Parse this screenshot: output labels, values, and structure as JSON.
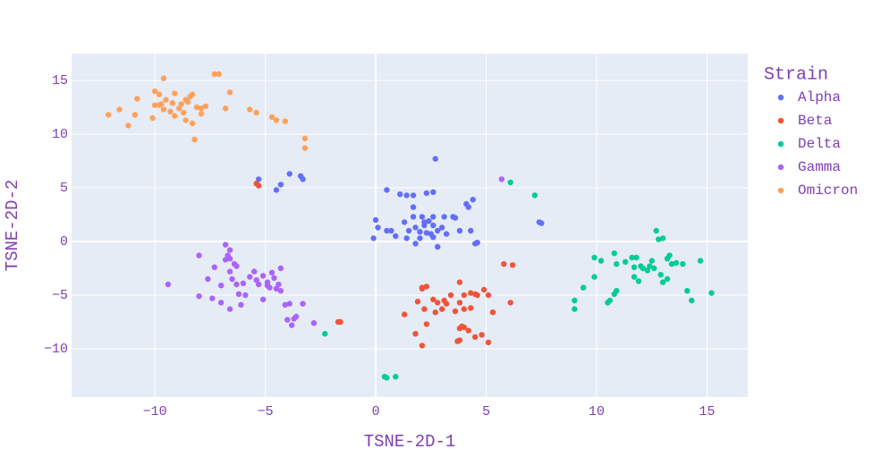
{
  "chart_data": {
    "type": "scatter",
    "xlabel": "TSNE-2D-1",
    "ylabel": "TSNE-2D-2",
    "legend_title": "Strain",
    "xlim": [
      -13.77,
      16.84
    ],
    "ylim": [
      -14.5,
      17.5
    ],
    "xticks": [
      {
        "value": -10,
        "label": "−10"
      },
      {
        "value": -5,
        "label": "−5"
      },
      0,
      5,
      10,
      15
    ],
    "yticks": [
      {
        "value": -10,
        "label": "−10"
      },
      {
        "value": -5,
        "label": "−5"
      },
      0,
      5,
      10,
      15
    ],
    "grid": true,
    "legend": "right",
    "series": [
      {
        "name": "Alpha",
        "color": "#636efa",
        "x": [
          0.5,
          1.1,
          1.4,
          1.7,
          2.3,
          2.6,
          2.7,
          1.7,
          2.1,
          2.6,
          3.1,
          3.5,
          0,
          0.1,
          0.5,
          0.7,
          1.3,
          1.5,
          1.8,
          2.0,
          2.2,
          2.4,
          2.6,
          2.8,
          3.0,
          3.2,
          2.3,
          2.5,
          1.8,
          2.8,
          -0.1,
          0.9,
          1.4,
          2.0,
          2.6,
          3.8,
          4.3,
          4.5,
          4.6,
          4.1,
          4.2,
          4.4,
          1.7,
          -5.3,
          -4.5,
          -4.3,
          -3.9,
          -3.4,
          -3.3,
          7.4,
          7.5,
          3.6,
          2.2
        ],
        "y": [
          4.8,
          4.4,
          4.3,
          3.2,
          4.5,
          4.6,
          7.7,
          2.3,
          2.3,
          2.3,
          2.3,
          2.3,
          2.0,
          1.3,
          1.0,
          1.0,
          1.8,
          1.0,
          1.3,
          0.9,
          1.5,
          1.9,
          1.5,
          1.0,
          1.3,
          0.7,
          0.8,
          0.7,
          -0.2,
          -0.5,
          0.3,
          0.5,
          0.3,
          0.3,
          0.4,
          1.0,
          1.0,
          -0.2,
          -0.1,
          3.5,
          3.2,
          3.9,
          4.3,
          5.8,
          4.8,
          5.3,
          6.3,
          6.1,
          5.8,
          1.8,
          1.7,
          2.2,
          1.8
        ]
      },
      {
        "name": "Beta",
        "color": "#ef553b",
        "x": [
          -5.4,
          -5.3,
          2.1,
          2.3,
          2.1,
          2.6,
          2.8,
          3.1,
          3.4,
          3.8,
          4.0,
          4.3,
          4.5,
          4.6,
          4.9,
          5.1,
          5.3,
          6.1,
          5.8,
          6.2,
          3.8,
          4.0,
          4.3,
          1.9,
          1.3,
          2.2,
          2.7,
          3.0,
          3.6,
          3.9,
          3.8,
          4.0,
          3.8,
          3.7,
          4.2,
          4.5,
          4.8,
          5.1,
          2.3,
          1.8,
          2.1,
          -1.7,
          -1.6,
          3.2
        ],
        "y": [
          5.4,
          5.2,
          -4.3,
          -4.2,
          -4.4,
          -5.4,
          -5.7,
          -5.5,
          -5.0,
          -3.8,
          -5.0,
          -4.8,
          -4.9,
          -5.0,
          -4.5,
          -5.0,
          -6.6,
          -5.7,
          -2.1,
          -2.2,
          -5.7,
          -6.3,
          -6.2,
          -5.6,
          -6.8,
          -6.3,
          -6.6,
          -6.3,
          -6.5,
          -7.9,
          -8.1,
          -8.0,
          -9.2,
          -9.3,
          -8.3,
          -8.9,
          -8.7,
          -9.4,
          -7.7,
          -8.6,
          -9.7,
          -7.5,
          -7.5,
          -5.8
        ]
      },
      {
        "name": "Delta",
        "color": "#00cc96",
        "x": [
          6.1,
          7.2,
          9.0,
          9.0,
          9.4,
          9.9,
          9.9,
          10.2,
          10.5,
          10.6,
          10.8,
          10.9,
          10.8,
          10.9,
          11.3,
          11.6,
          11.7,
          11.8,
          12.0,
          12.1,
          12.3,
          12.4,
          12.6,
          12.7,
          12.8,
          13.0,
          13.2,
          13.3,
          13.4,
          13.6,
          13.9,
          12.9,
          13.0,
          13.2,
          14.1,
          14.3,
          14.7,
          15.2,
          11.9,
          11.7,
          -2.3,
          0.4,
          0.5,
          0.9,
          12.5
        ],
        "y": [
          5.5,
          4.3,
          -5.5,
          -6.3,
          -4.3,
          -1.5,
          -3.3,
          -1.8,
          -5.7,
          -5.5,
          -4.9,
          -4.6,
          -1.1,
          -2.1,
          -1.9,
          -1.5,
          -2.4,
          -1.5,
          -2.3,
          -2.5,
          -2.7,
          -2.3,
          -2.5,
          1.0,
          0.2,
          0.3,
          -1.6,
          -1.3,
          -2.1,
          -2.0,
          -2.1,
          -3.1,
          -3.8,
          -3.5,
          -4.6,
          -5.5,
          -1.8,
          -4.8,
          -3.7,
          -3.3,
          -8.6,
          -12.6,
          -12.7,
          -12.6,
          -1.8
        ]
      },
      {
        "name": "Gamma",
        "color": "#ab63fa",
        "x": [
          5.7,
          -9.4,
          -8.0,
          -8.0,
          -7.4,
          -7.3,
          -7.0,
          -6.8,
          -6.8,
          -6.6,
          -6.7,
          -6.6,
          -6.4,
          -6.3,
          -6.6,
          -6.5,
          -6.3,
          -6.2,
          -6.1,
          -6.6,
          -6.0,
          -5.9,
          -5.7,
          -5.5,
          -5.4,
          -5.3,
          -5.1,
          -5.1,
          -4.9,
          -4.8,
          -4.7,
          -4.6,
          -4.5,
          -4.4,
          -4.3,
          -4.3,
          -4.1,
          -4.0,
          -3.7,
          -3.6,
          -3.8,
          -3.9,
          -3.3,
          -2.8,
          -7.6,
          -7.0,
          -4.9
        ],
        "y": [
          5.8,
          -4.0,
          -1.3,
          -5.1,
          -5.3,
          -2.4,
          -4.1,
          -1.7,
          -0.3,
          -0.8,
          -1.3,
          -1.6,
          -2.1,
          -2.3,
          -2.8,
          -3.5,
          -4.0,
          -4.9,
          -5.9,
          -6.3,
          -3.9,
          -5.0,
          -3.3,
          -2.8,
          -3.6,
          -4.0,
          -5.4,
          -3.2,
          -3.8,
          -4.3,
          -2.9,
          -3.4,
          -4.4,
          -4.0,
          -2.5,
          -4.6,
          -5.9,
          -7.3,
          -7.2,
          -7.0,
          -7.8,
          -5.8,
          -5.8,
          -7.6,
          -3.5,
          -5.7,
          -4.1
        ]
      },
      {
        "name": "Omicron",
        "color": "#ffa15a",
        "x": [
          -12.1,
          -11.6,
          -11.2,
          -10.9,
          -10.8,
          -10.1,
          -10.0,
          -9.8,
          -9.8,
          -9.6,
          -9.7,
          -9.6,
          -9.5,
          -9.3,
          -9.2,
          -9.1,
          -8.9,
          -8.8,
          -8.7,
          -8.6,
          -8.5,
          -8.4,
          -8.3,
          -8.3,
          -8.2,
          -8.1,
          -7.9,
          -7.9,
          -7.7,
          -7.3,
          -7.1,
          -6.8,
          -6.6,
          -5.7,
          -5.4,
          -4.7,
          -4.5,
          -4.1,
          -3.2,
          -3.2,
          -8.6,
          -9.1,
          -10.0
        ],
        "y": [
          11.8,
          12.3,
          10.8,
          11.8,
          13.3,
          11.5,
          14.0,
          13.7,
          12.7,
          15.2,
          12.8,
          12.3,
          13.2,
          12.1,
          12.9,
          11.7,
          12.4,
          12.8,
          12.0,
          13.2,
          13.0,
          13.5,
          13.7,
          11.0,
          9.5,
          12.5,
          11.9,
          12.4,
          12.6,
          15.6,
          15.6,
          12.4,
          13.9,
          12.3,
          12.0,
          11.6,
          11.3,
          11.2,
          9.6,
          8.7,
          11.3,
          13.8,
          12.7
        ]
      }
    ]
  }
}
